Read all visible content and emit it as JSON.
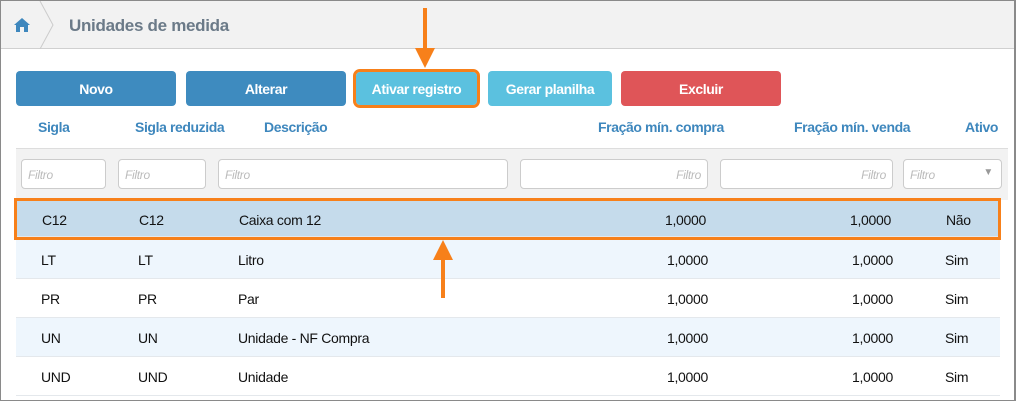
{
  "header": {
    "title": "Unidades de medida",
    "home_icon": "home-icon"
  },
  "toolbar": {
    "novo": "Novo",
    "alterar": "Alterar",
    "ativar": "Ativar registro",
    "gerar": "Gerar planilha",
    "excluir": "Excluir"
  },
  "columns": [
    "Sigla",
    "Sigla reduzida",
    "Descrição",
    "Fração mín. compra",
    "Fração mín. venda",
    "Ativo"
  ],
  "filters": {
    "placeholder": "Filtro"
  },
  "rows": [
    {
      "sigla": "C12",
      "reduzida": "C12",
      "descricao": "Caixa com 12",
      "compra": "1,0000",
      "venda": "1,0000",
      "ativo": "Não"
    },
    {
      "sigla": "LT",
      "reduzida": "LT",
      "descricao": "Litro",
      "compra": "1,0000",
      "venda": "1,0000",
      "ativo": "Sim"
    },
    {
      "sigla": "PR",
      "reduzida": "PR",
      "descricao": "Par",
      "compra": "1,0000",
      "venda": "1,0000",
      "ativo": "Sim"
    },
    {
      "sigla": "UN",
      "reduzida": "UN",
      "descricao": "Unidade - NF Compra",
      "compra": "1,0000",
      "venda": "1,0000",
      "ativo": "Sim"
    },
    {
      "sigla": "UND",
      "reduzida": "UND",
      "descricao": "Unidade",
      "compra": "1,0000",
      "venda": "1,0000",
      "ativo": "Sim"
    }
  ],
  "colors": {
    "primary": "#3e8bbf",
    "info": "#5bc1df",
    "danger": "#df5558",
    "highlight": "#f7801a",
    "selected_row": "#c5dbeb"
  }
}
